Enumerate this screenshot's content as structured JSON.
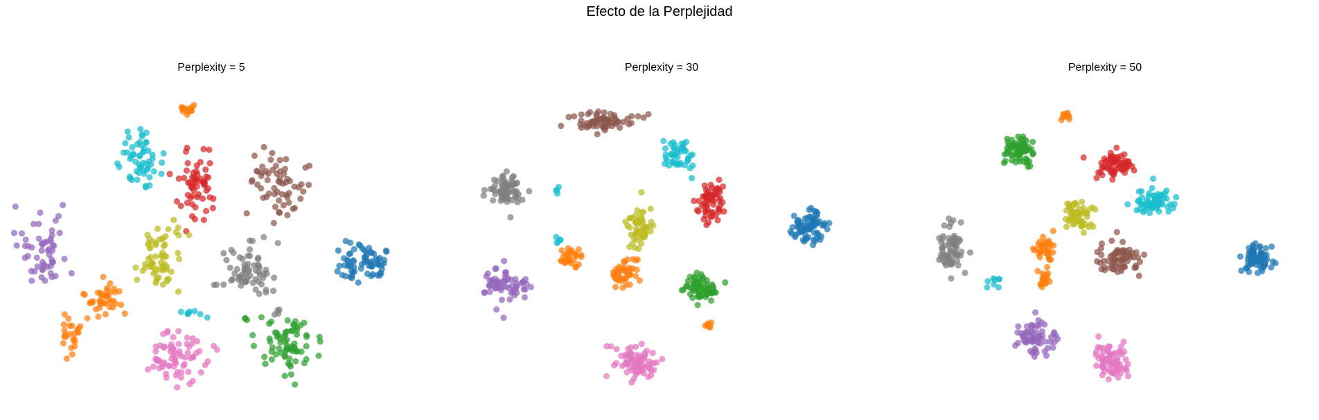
{
  "figure": {
    "suptitle": "Efecto de la Perplejidad"
  },
  "chart_data": [
    {
      "type": "scatter",
      "title": "Perplexity = 5",
      "axes_visible": false,
      "clusters": [
        {
          "color": "#ff7f0e",
          "center": [
            -3.3,
            4.4
          ],
          "spread": [
            0.25,
            0.08
          ],
          "n": 16
        },
        {
          "color": "#17becf",
          "center": [
            -5.5,
            2.6
          ],
          "spread": [
            0.55,
            0.45
          ],
          "n": 55
        },
        {
          "color": "#d62728",
          "center": [
            -2.8,
            1.6
          ],
          "spread": [
            0.5,
            0.6
          ],
          "n": 60
        },
        {
          "color": "#8c564b",
          "center": [
            1.3,
            1.7
          ],
          "spread": [
            0.7,
            0.6
          ],
          "n": 60
        },
        {
          "color": "#9467bd",
          "center": [
            -10.3,
            -0.6
          ],
          "spread": [
            0.75,
            0.65
          ],
          "n": 55
        },
        {
          "color": "#bcbd22",
          "center": [
            -4.6,
            -1.0
          ],
          "spread": [
            0.5,
            0.6
          ],
          "n": 65
        },
        {
          "color": "#7f7f7f",
          "center": [
            -0.2,
            -1.3
          ],
          "spread": [
            0.65,
            0.45
          ],
          "n": 65
        },
        {
          "color": "#1f77b4",
          "center": [
            5.5,
            -1.1
          ],
          "spread": [
            0.65,
            0.35
          ],
          "n": 70
        },
        {
          "color": "#ff7f0e",
          "center": [
            -7.3,
            -2.4
          ],
          "spread": [
            0.5,
            0.35
          ],
          "n": 40
        },
        {
          "color": "#ff7f0e",
          "center": [
            -9.0,
            -3.6
          ],
          "spread": [
            0.3,
            0.4
          ],
          "n": 25
        },
        {
          "color": "#e377c2",
          "center": [
            -3.7,
            -4.5
          ],
          "spread": [
            0.7,
            0.45
          ],
          "n": 70
        },
        {
          "color": "#2ca02c",
          "center": [
            1.7,
            -4.0
          ],
          "spread": [
            0.75,
            0.5
          ],
          "n": 70
        },
        {
          "color": "#17becf",
          "center": [
            -3.0,
            -2.9
          ],
          "spread": [
            0.35,
            0.06
          ],
          "n": 8
        },
        {
          "color": "#7f7f7f",
          "center": [
            1.3,
            -2.9
          ],
          "spread": [
            0.12,
            0.1
          ],
          "n": 4
        },
        {
          "color": "#2ca02c",
          "center": [
            -0.3,
            -3.1
          ],
          "spread": [
            0.08,
            0.05
          ],
          "n": 3
        }
      ],
      "xlim": [
        -12,
        8
      ],
      "ylim": [
        -6,
        5
      ]
    },
    {
      "type": "scatter",
      "title": "Perplexity = 30",
      "axes_visible": false,
      "clusters": [
        {
          "color": "#8c564b",
          "center": [
            -1.5,
            4.3
          ],
          "spread": [
            0.65,
            0.2
          ],
          "n": 65
        },
        {
          "color": "#17becf",
          "center": [
            1.8,
            3.0
          ],
          "spread": [
            0.3,
            0.35
          ],
          "n": 45
        },
        {
          "color": "#7f7f7f",
          "center": [
            -5.9,
            1.5
          ],
          "spread": [
            0.45,
            0.35
          ],
          "n": 65
        },
        {
          "color": "#bcbd22",
          "center": [
            0.0,
            0.0
          ],
          "spread": [
            0.3,
            0.5
          ],
          "n": 55
        },
        {
          "color": "#d62728",
          "center": [
            3.2,
            0.9
          ],
          "spread": [
            0.28,
            0.45
          ],
          "n": 60
        },
        {
          "color": "#1f77b4",
          "center": [
            7.5,
            0.0
          ],
          "spread": [
            0.4,
            0.35
          ],
          "n": 75
        },
        {
          "color": "#9467bd",
          "center": [
            -6.0,
            -2.3
          ],
          "spread": [
            0.6,
            0.35
          ],
          "n": 60
        },
        {
          "color": "#ff7f0e",
          "center": [
            -3.0,
            -1.3
          ],
          "spread": [
            0.25,
            0.2
          ],
          "n": 30
        },
        {
          "color": "#ff7f0e",
          "center": [
            -0.6,
            -1.8
          ],
          "spread": [
            0.3,
            0.28
          ],
          "n": 45
        },
        {
          "color": "#2ca02c",
          "center": [
            2.8,
            -2.5
          ],
          "spread": [
            0.4,
            0.3
          ],
          "n": 65
        },
        {
          "color": "#ff7f0e",
          "center": [
            3.1,
            -4.0
          ],
          "spread": [
            0.1,
            0.08
          ],
          "n": 8
        },
        {
          "color": "#e377c2",
          "center": [
            -0.2,
            -5.5
          ],
          "spread": [
            0.45,
            0.35
          ],
          "n": 80
        },
        {
          "color": "#17becf",
          "center": [
            -3.6,
            -0.5
          ],
          "spread": [
            0.1,
            0.12
          ],
          "n": 5
        },
        {
          "color": "#17becf",
          "center": [
            -3.6,
            1.5
          ],
          "spread": [
            0.08,
            0.12
          ],
          "n": 4
        }
      ],
      "xlim": [
        -8,
        10
      ],
      "ylim": [
        -7,
        5.5
      ]
    },
    {
      "type": "scatter",
      "title": "Perplexity = 50",
      "axes_visible": false,
      "clusters": [
        {
          "color": "#ff7f0e",
          "center": [
            -1.5,
            5.0
          ],
          "spread": [
            0.12,
            0.1
          ],
          "n": 12
        },
        {
          "color": "#2ca02c",
          "center": [
            -4.0,
            3.6
          ],
          "spread": [
            0.4,
            0.35
          ],
          "n": 65
        },
        {
          "color": "#d62728",
          "center": [
            1.0,
            3.1
          ],
          "spread": [
            0.55,
            0.25
          ],
          "n": 65
        },
        {
          "color": "#17becf",
          "center": [
            3.0,
            1.6
          ],
          "spread": [
            0.55,
            0.25
          ],
          "n": 60
        },
        {
          "color": "#bcbd22",
          "center": [
            -0.9,
            1.0
          ],
          "spread": [
            0.4,
            0.3
          ],
          "n": 60
        },
        {
          "color": "#7f7f7f",
          "center": [
            -7.5,
            -0.4
          ],
          "spread": [
            0.3,
            0.6
          ],
          "n": 65
        },
        {
          "color": "#ff7f0e",
          "center": [
            -2.6,
            -0.3
          ],
          "spread": [
            0.25,
            0.25
          ],
          "n": 35
        },
        {
          "color": "#ff7f0e",
          "center": [
            -2.7,
            -1.6
          ],
          "spread": [
            0.15,
            0.2
          ],
          "n": 20
        },
        {
          "color": "#8c564b",
          "center": [
            1.3,
            -0.8
          ],
          "spread": [
            0.55,
            0.4
          ],
          "n": 65
        },
        {
          "color": "#1f77b4",
          "center": [
            8.4,
            -0.7
          ],
          "spread": [
            0.35,
            0.3
          ],
          "n": 75
        },
        {
          "color": "#9467bd",
          "center": [
            -3.2,
            -4.0
          ],
          "spread": [
            0.45,
            0.35
          ],
          "n": 65
        },
        {
          "color": "#e377c2",
          "center": [
            0.8,
            -4.9
          ],
          "spread": [
            0.4,
            0.35
          ],
          "n": 70
        },
        {
          "color": "#17becf",
          "center": [
            -5.3,
            -1.7
          ],
          "spread": [
            0.25,
            0.15
          ],
          "n": 8
        }
      ],
      "xlim": [
        -10,
        11
      ],
      "ylim": [
        -6.5,
        6
      ]
    }
  ]
}
